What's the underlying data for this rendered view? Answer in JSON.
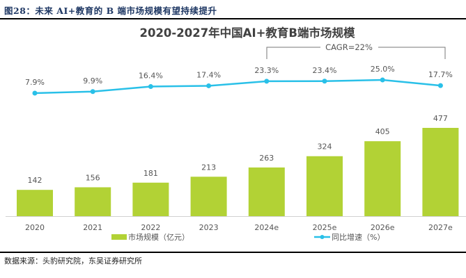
{
  "figure_caption": "图28：未来 AI+教育的 B 端市场规模有望持续提升",
  "source": "数据来源：头豹研究院，东吴证券研究所",
  "chart_data": {
    "type": "bar+line",
    "title": "2020-2027年中国AI+教育B端市场规模",
    "categories": [
      "2020",
      "2021",
      "2022",
      "2023",
      "2024e",
      "2025e",
      "2026e",
      "2027e"
    ],
    "series": [
      {
        "name": "市场规模（亿元）",
        "type": "bar",
        "axis": "left",
        "color": "#b2d235",
        "values": [
          142,
          156,
          181,
          213,
          263,
          324,
          405,
          477
        ],
        "labels": [
          "142",
          "156",
          "181",
          "213",
          "263",
          "324",
          "405",
          "477"
        ]
      },
      {
        "name": "同比增速（%）",
        "type": "line",
        "axis": "right",
        "color": "#29c0e8",
        "values": [
          7.9,
          9.9,
          16.4,
          17.4,
          23.3,
          23.4,
          25.0,
          17.7
        ],
        "labels": [
          "7.9%",
          "9.9%",
          "16.4%",
          "17.4%",
          "23.3%",
          "23.4%",
          "25.0%",
          "17.7%"
        ]
      }
    ],
    "annotation": {
      "text": "CAGR=22%",
      "from": "2024e",
      "to": "2027e"
    },
    "legend": "bottom",
    "grid": false,
    "ylim_bar": [
      0,
      477
    ],
    "axes_visible": false
  }
}
